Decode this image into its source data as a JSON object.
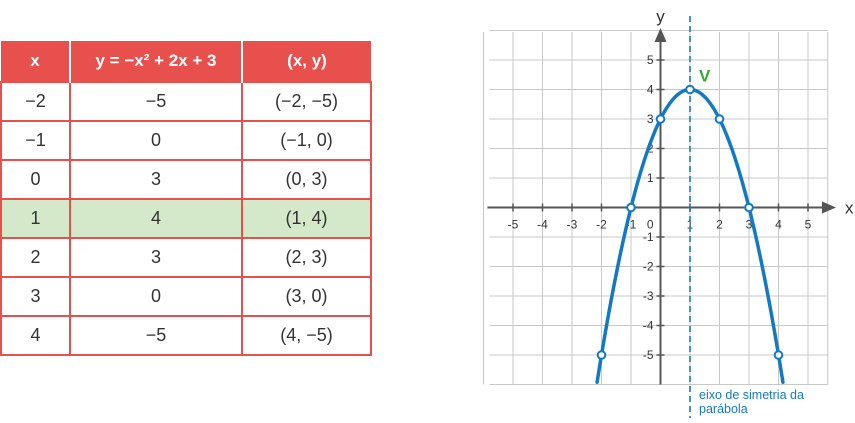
{
  "table": {
    "headers": [
      "x",
      "y = −x² + 2x + 3",
      "(x, y)"
    ],
    "rows": [
      {
        "x": "−2",
        "y": "−5",
        "pair": "(−2, −5)"
      },
      {
        "x": "−1",
        "y": "0",
        "pair": "(−1, 0)"
      },
      {
        "x": "0",
        "y": "3",
        "pair": "(0, 3)"
      },
      {
        "x": "1",
        "y": "4",
        "pair": "(1, 4)"
      },
      {
        "x": "2",
        "y": "3",
        "pair": "(2, 3)"
      },
      {
        "x": "3",
        "y": "0",
        "pair": "(3, 0)"
      },
      {
        "x": "4",
        "y": "−5",
        "pair": "(4, −5)"
      }
    ],
    "highlight_row": 3,
    "header_color": "#e8504e",
    "highlight_color": "#d4e9c9"
  },
  "chart_data": {
    "type": "line",
    "xlabel": "x",
    "ylabel": "y",
    "xlim": [
      -5.8,
      6.0
    ],
    "ylim": [
      -6.0,
      6.0
    ],
    "grid": true,
    "x_ticks": [
      -5,
      -4,
      -3,
      -2,
      -1,
      1,
      2,
      3,
      4,
      5
    ],
    "y_ticks": [
      -5,
      -4,
      -3,
      -2,
      -1,
      1,
      2,
      3,
      4,
      5
    ],
    "origin_label": "0",
    "function": {
      "a": -1,
      "b": 2,
      "c": 3
    },
    "curve_x_range": [
      -2.15,
      4.15
    ],
    "points": [
      {
        "x": -2,
        "y": -5
      },
      {
        "x": -1,
        "y": 0
      },
      {
        "x": 0,
        "y": 3
      },
      {
        "x": 1,
        "y": 4
      },
      {
        "x": 2,
        "y": 3
      },
      {
        "x": 3,
        "y": 0
      },
      {
        "x": 4,
        "y": -5
      }
    ],
    "vertex": {
      "x": 1,
      "y": 4,
      "label": "V"
    },
    "axis_of_symmetry": {
      "x": 1,
      "label_lines": [
        "eixo de simetria da",
        "parábola"
      ]
    },
    "colors": {
      "curve": "#1479c4",
      "vertex_label": "#3daa35",
      "axis_of_symmetry": "#1479c4",
      "grid": "#c8c8c8",
      "axes": "#555555"
    }
  }
}
